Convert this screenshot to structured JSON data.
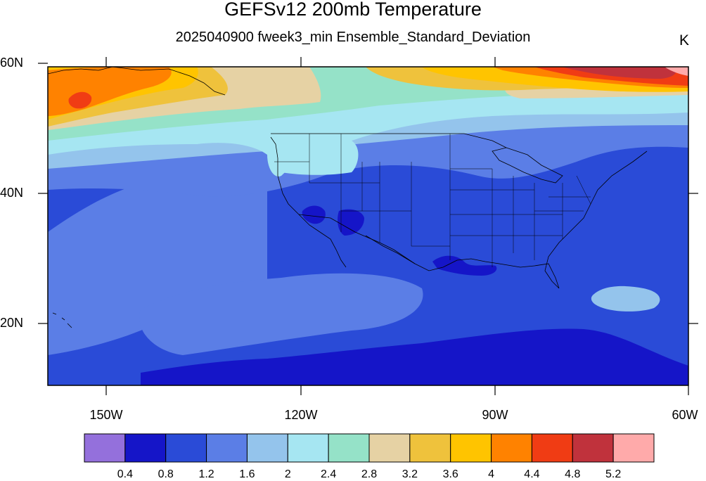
{
  "title": "GEFSv12 200mb Temperature",
  "subtitle": "2025040900 fweek3_min Ensemble_Standard_Deviation",
  "units": "K",
  "lat_labels": [
    "60N",
    "40N",
    "20N"
  ],
  "lon_labels": [
    "150W",
    "120W",
    "90W",
    "60W"
  ],
  "colorbar": {
    "labels": [
      "0.4",
      "0.8",
      "1.2",
      "1.6",
      "2",
      "2.4",
      "2.8",
      "3.2",
      "3.6",
      "4",
      "4.4",
      "4.8",
      "5.2"
    ],
    "colors": [
      "#9470dc",
      "#1515c8",
      "#2a4bd7",
      "#5b7ee6",
      "#94c4ec",
      "#a6e6f2",
      "#95e2c8",
      "#e6d2a4",
      "#efc23c",
      "#ffc400",
      "#ff8200",
      "#f03c14",
      "#c0323c",
      "#ffaaaa"
    ]
  },
  "chart_data": {
    "type": "heatmap",
    "title": "GEFSv12 200mb Temperature",
    "subtitle": "2025040900 fweek3_min Ensemble_Standard_Deviation",
    "units": "K",
    "projection": "cylindrical equidistant",
    "lon_range": [
      -159,
      -60
    ],
    "lat_range": [
      10,
      59.5
    ],
    "lat_ticks": [
      60,
      40,
      20
    ],
    "lon_ticks": [
      -150,
      -120,
      -90,
      -60
    ],
    "levels": [
      0.4,
      0.8,
      1.2,
      1.6,
      2,
      2.4,
      2.8,
      3.2,
      3.6,
      4,
      4.4,
      4.8,
      5.2
    ],
    "regions": [
      {
        "area": "southern tropical band (10N-17N)",
        "range_K": [
          0.4,
          1.2
        ]
      },
      {
        "area": "subtropical Pacific and Gulf region (17N-35N)",
        "range_K": [
          0.8,
          1.6
        ]
      },
      {
        "area": "central and eastern United States",
        "range_K": [
          0.8,
          1.6
        ]
      },
      {
        "area": "Arizona / southern Texas coast",
        "range_K": [
          0.4,
          0.8
        ]
      },
      {
        "area": "Pacific Northwest / northern Rockies",
        "range_K": [
          2.0,
          2.8
        ]
      },
      {
        "area": "Gulf of Alaska (55N-60N, 155W-145W)",
        "range_K": [
          4.0,
          4.8
        ]
      },
      {
        "area": "Labrador Sea / northeast Canada (55N-60N, 80W-60W)",
        "range_K": [
          4.4,
          5.2
        ]
      },
      {
        "area": "central Canada (50N-60N, 120W-90W)",
        "range_K": [
          2.4,
          3.6
        ]
      }
    ]
  }
}
